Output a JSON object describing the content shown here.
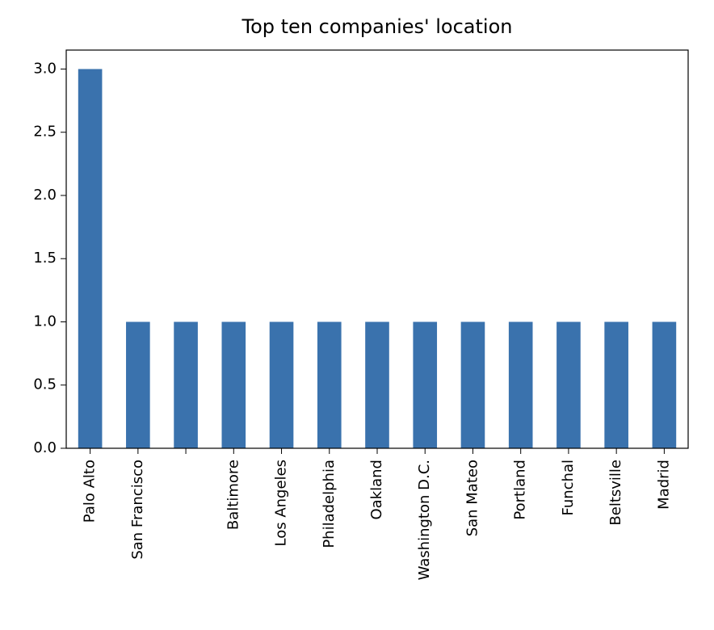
{
  "chart_data": {
    "type": "bar",
    "title": "Top ten companies' location",
    "xlabel": "",
    "ylabel": "",
    "categories": [
      "Palo Alto",
      "San Francisco",
      "",
      "Baltimore",
      "Los Angeles",
      "Philadelphia",
      "Oakland",
      "Washington D.C.",
      "San Mateo",
      "Portland",
      "Funchal",
      "Beltsville",
      "Madrid"
    ],
    "values": [
      3,
      1,
      1,
      1,
      1,
      1,
      1,
      1,
      1,
      1,
      1,
      1,
      1
    ],
    "ylim": [
      0,
      3.15
    ],
    "yticks": [
      0.0,
      0.5,
      1.0,
      1.5,
      2.0,
      2.5,
      3.0
    ],
    "ytick_labels": [
      "0.0",
      "0.5",
      "1.0",
      "1.5",
      "2.0",
      "2.5",
      "3.0"
    ],
    "grid": false,
    "legend": "none",
    "bar_color": "#3a72ad"
  }
}
